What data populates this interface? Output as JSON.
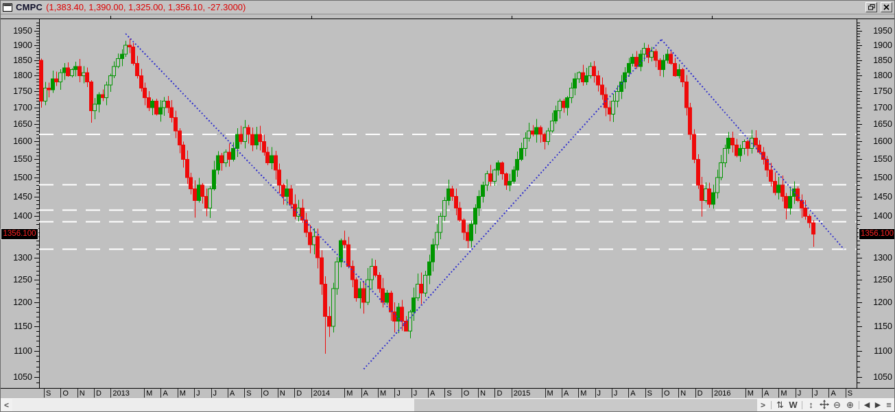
{
  "window": {
    "title": "CMPC",
    "ohlc_text": "(1,383.40, 1,390.00, 1,325.00, 1,356.10, -27.3000)"
  },
  "current_price_label": "1356.100",
  "toolbar": {
    "scroll_left_glyph": "<",
    "scroll_right_glyph": ">",
    "icons": [
      {
        "name": "refresh-icon",
        "glyph": "⇅"
      },
      {
        "name": "weekly-timeframe-button",
        "glyph": "W"
      },
      {
        "name": "fit-vertical-icon",
        "glyph": "↕"
      },
      {
        "name": "pan-icon",
        "glyph": ""
      },
      {
        "name": "zoom-out-button",
        "glyph": "⊖"
      },
      {
        "name": "zoom-in-button",
        "glyph": "⊕"
      },
      {
        "name": "scroll-back-button",
        "glyph": "◀"
      },
      {
        "name": "scroll-forward-button",
        "glyph": "▶"
      },
      {
        "name": "menu-icon",
        "glyph": "≡"
      }
    ]
  },
  "colors": {
    "background": "#c0c0c0",
    "up": "#009600",
    "down": "#ee0a0a",
    "trendline": "#3232cd",
    "level_line": "#ffffff",
    "price_tag_bg": "#000000",
    "price_tag_text": "#ff2222",
    "title_values": "#dd0000"
  },
  "chart_data": {
    "type": "candlestick",
    "timeframe": "weekly",
    "symbol": "CMPC",
    "title": "CMPC (1,383.40, 1,390.00, 1,325.00, 1,356.10, -27.3000)",
    "last_bar": {
      "open": 1383.4,
      "high": 1390.0,
      "low": 1325.0,
      "close": 1356.1,
      "change": -27.3
    },
    "y_axis": {
      "scale": "log",
      "min": 1050,
      "max": 1950,
      "tick_step": 50,
      "minor_step": 10,
      "tick_labels": [
        "1950",
        "1900",
        "1850",
        "1800",
        "1750",
        "1700",
        "1650",
        "1600",
        "1550",
        "1500",
        "1450",
        "1400",
        "1350",
        "1300",
        "1250",
        "1200",
        "1150",
        "1100",
        "1050"
      ]
    },
    "x_axis_labels": [
      "S",
      "O",
      "N",
      "D",
      "2013",
      "M",
      "A",
      "M",
      "J",
      "J",
      "A",
      "S",
      "O",
      "N",
      "D",
      "2014",
      "M",
      "A",
      "M",
      "J",
      "J",
      "A",
      "S",
      "O",
      "N",
      "D",
      "2015",
      "M",
      "A",
      "M",
      "J",
      "J",
      "A",
      "S",
      "O",
      "N",
      "D",
      "2016",
      "M",
      "A",
      "M",
      "J",
      "J",
      "A",
      "S"
    ],
    "first_open": 1850,
    "closes": [
      1720,
      1760,
      1755,
      1790,
      1780,
      1810,
      1825,
      1800,
      1820,
      1830,
      1800,
      1810,
      1780,
      1690,
      1710,
      1740,
      1730,
      1770,
      1800,
      1830,
      1855,
      1870,
      1900,
      1895,
      1840,
      1800,
      1760,
      1730,
      1700,
      1720,
      1680,
      1700,
      1720,
      1700,
      1670,
      1630,
      1590,
      1550,
      1500,
      1470,
      1440,
      1480,
      1450,
      1420,
      1470,
      1520,
      1560,
      1540,
      1570,
      1550,
      1580,
      1620,
      1600,
      1640,
      1620,
      1590,
      1620,
      1600,
      1570,
      1540,
      1560,
      1520,
      1480,
      1450,
      1470,
      1430,
      1400,
      1420,
      1390,
      1360,
      1330,
      1350,
      1300,
      1240,
      1170,
      1150,
      1230,
      1290,
      1340,
      1330,
      1280,
      1250,
      1210,
      1230,
      1200,
      1250,
      1280,
      1260,
      1230,
      1200,
      1220,
      1180,
      1160,
      1190,
      1160,
      1140,
      1180,
      1210,
      1240,
      1220,
      1260,
      1290,
      1330,
      1360,
      1400,
      1440,
      1470,
      1450,
      1420,
      1390,
      1360,
      1340,
      1380,
      1420,
      1450,
      1480,
      1510,
      1490,
      1520,
      1540,
      1510,
      1480,
      1490,
      1520,
      1550,
      1580,
      1610,
      1630,
      1620,
      1640,
      1620,
      1600,
      1630,
      1660,
      1690,
      1720,
      1700,
      1730,
      1760,
      1790,
      1810,
      1780,
      1800,
      1830,
      1800,
      1770,
      1740,
      1700,
      1680,
      1720,
      1750,
      1780,
      1810,
      1840,
      1860,
      1830,
      1870,
      1890,
      1860,
      1880,
      1850,
      1820,
      1850,
      1870,
      1840,
      1800,
      1820,
      1780,
      1700,
      1620,
      1550,
      1480,
      1440,
      1470,
      1430,
      1460,
      1500,
      1540,
      1580,
      1610,
      1590,
      1560,
      1580,
      1600,
      1580,
      1610,
      1590,
      1570,
      1550,
      1520,
      1490,
      1460,
      1480,
      1450,
      1420,
      1450,
      1470,
      1440,
      1420,
      1400,
      1383.4,
      1356.1
    ],
    "wick_overrides": {
      "0": {
        "low": 1700,
        "high": 1855
      },
      "13": {
        "low": 1655
      },
      "22": {
        "high": 1916
      },
      "40": {
        "low": 1396
      },
      "53": {
        "high": 1663
      },
      "74": {
        "low": 1095
      },
      "95": {
        "low": 1142
      },
      "157": {
        "high": 1909
      },
      "172": {
        "low": 1399
      },
      "194": {
        "low": 1392
      },
      "201": {
        "high": 1390,
        "low": 1325
      }
    },
    "support_resistance_levels": [
      1620,
      1481,
      1415,
      1386,
      1320
    ],
    "trendlines": [
      {
        "from_week": 22,
        "from_price": 1940,
        "to_week": 95,
        "to_price": 1150,
        "direction": "down"
      },
      {
        "from_week": 84,
        "from_price": 1065,
        "to_week": 161.5,
        "to_price": 1920,
        "direction": "up"
      },
      {
        "from_week": 161.5,
        "from_price": 1920,
        "to_week": 209,
        "to_price": 1320,
        "direction": "down"
      }
    ]
  }
}
